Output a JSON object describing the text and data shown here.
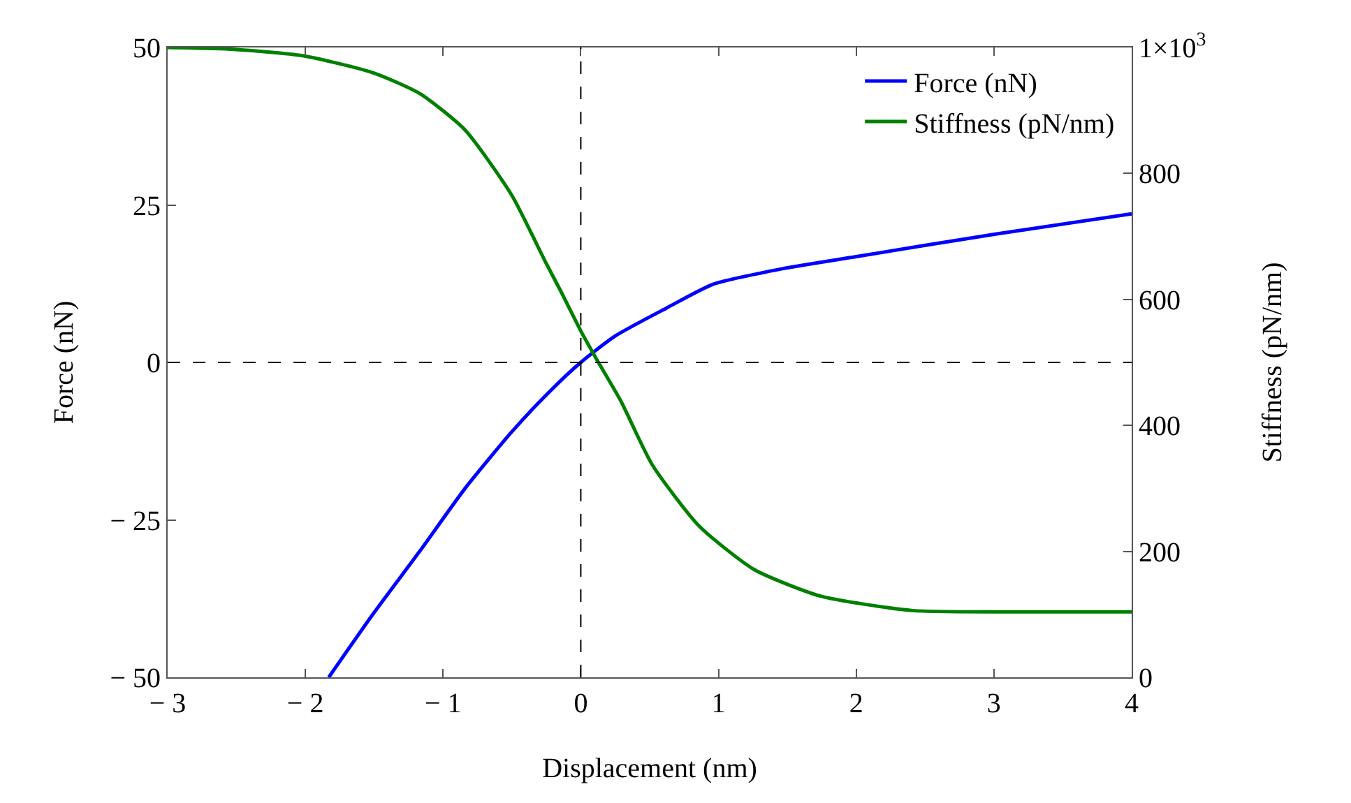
{
  "chart_data": {
    "type": "line",
    "xlabel": "Displacement (nm)",
    "ylabel": "Force (nN)",
    "y2label": "Stiffness (pN/nm)",
    "xlim": [
      -3,
      4
    ],
    "xticks": [
      {
        "value": -3,
        "label": "− 3"
      },
      {
        "value": -2,
        "label": "− 2"
      },
      {
        "value": -1,
        "label": "− 1"
      },
      0,
      1,
      2,
      3,
      4
    ],
    "ylim": [
      -50,
      50
    ],
    "yticks": [
      {
        "value": -50,
        "label": "− 50"
      },
      {
        "value": -25,
        "label": "− 25"
      },
      0,
      25,
      50
    ],
    "y2lim": [
      0,
      1000
    ],
    "y2ticks": [
      0,
      200,
      400,
      600,
      800,
      {
        "value": 1000,
        "label": "1×10$^{3}$"
      }
    ],
    "legend": "top right",
    "line_style": "solid",
    "marker": "none",
    "ref_lines": [
      {
        "axis": "x",
        "value": 0,
        "color": "#000000",
        "line_style": "dashed"
      },
      {
        "axis": "y2",
        "value": 500,
        "color": "#000000",
        "line_style": "dashed"
      }
    ],
    "series": [
      {
        "name": "Force (nN)",
        "color": "#0000ff",
        "x": [
          -1.83,
          -1.51,
          -1.17,
          -0.84,
          -0.5,
          -0.23,
          0,
          0.25,
          0.62,
          0.96,
          1.47,
          2.0,
          3.02,
          4.0
        ],
        "values": [
          -50,
          -40,
          -30,
          -20,
          -11,
          -4.7,
          0,
          4.2,
          8.6,
          12.4,
          14.9,
          16.8,
          20.4,
          23.6
        ]
      },
      {
        "name": "Stiffness (pN/nm)",
        "color": "#008000",
        "axis": "y2",
        "x": [
          -3,
          -2.52,
          -2.02,
          -1.51,
          -1.17,
          -0.84,
          -0.5,
          -0.26,
          -0.15,
          0,
          0.12,
          0.29,
          0.52,
          0.86,
          1.26,
          1.74,
          2.41,
          3.22,
          4.0
        ],
        "values": [
          1000,
          997,
          987,
          960,
          927,
          869,
          765,
          661,
          615,
          550,
          503,
          439,
          337,
          240,
          171,
          129,
          106,
          104,
          104
        ]
      }
    ]
  }
}
